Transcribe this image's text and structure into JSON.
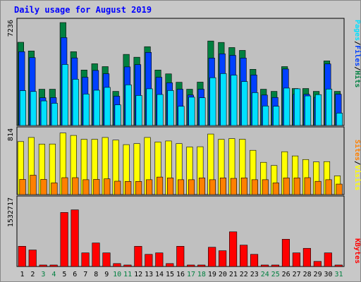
{
  "title": "Daily usage for August 2019",
  "colors": {
    "hits": "#008040",
    "files": "#0040ff",
    "pages": "#00e0ff",
    "visits": "#ffff00",
    "sites": "#ff8000",
    "kbytes": "#ff0000",
    "weekday_label": "#000000",
    "weekend_label": "#008040",
    "panel_bg": "#c0c0c0",
    "frame_bg": "#c8c8c8"
  },
  "legend": {
    "top": [
      {
        "text": "Pages",
        "color": "#00e0ff"
      },
      {
        "text": "/",
        "color": "#000000"
      },
      {
        "text": "Files",
        "color": "#0040ff"
      },
      {
        "text": "/",
        "color": "#000000"
      },
      {
        "text": "Hits",
        "color": "#008040"
      }
    ],
    "middle": [
      {
        "text": "Sites",
        "color": "#ff8000"
      },
      {
        "text": "/",
        "color": "#000000"
      },
      {
        "text": "Visits",
        "color": "#ffff00"
      }
    ],
    "bottom": [
      {
        "text": "KBytes",
        "color": "#ff0000"
      }
    ]
  },
  "chart_data": [
    {
      "type": "bar",
      "title": "Daily usage for August 2019",
      "ymax_label": "7236",
      "ylim": [
        0,
        7236
      ],
      "categories": [
        "1",
        "2",
        "3",
        "4",
        "5",
        "6",
        "7",
        "8",
        "9",
        "10",
        "11",
        "12",
        "13",
        "14",
        "15",
        "16",
        "17",
        "18",
        "19",
        "20",
        "21",
        "22",
        "23",
        "24",
        "25",
        "26",
        "27",
        "28",
        "29",
        "30",
        "31"
      ],
      "weekend_days": [
        "3",
        "4",
        "10",
        "11",
        "17",
        "18",
        "24",
        "25",
        "31"
      ],
      "series": [
        {
          "name": "Hits",
          "values": [
            5850,
            5240,
            2550,
            2550,
            7236,
            5190,
            3900,
            4340,
            4140,
            2400,
            5000,
            4800,
            5540,
            3900,
            3630,
            3040,
            2550,
            3050,
            5940,
            5840,
            5480,
            5280,
            3950,
            2550,
            2400,
            4140,
            2600,
            2600,
            2400,
            4540,
            2400
          ]
        },
        {
          "name": "Files",
          "values": [
            5190,
            4770,
            1950,
            1960,
            6180,
            4750,
            3390,
            3870,
            3640,
            2060,
            4120,
            4280,
            5140,
            3390,
            3000,
            2550,
            2140,
            2550,
            4740,
            5040,
            4930,
            4740,
            3550,
            2140,
            1970,
            3970,
            2190,
            2190,
            1980,
            4330,
            2200
          ]
        },
        {
          "name": "Pages",
          "values": [
            2450,
            2390,
            1730,
            1560,
            4290,
            3250,
            2210,
            2480,
            2680,
            1450,
            2860,
            2110,
            2580,
            2180,
            2460,
            1350,
            1990,
            1950,
            3360,
            3650,
            3540,
            3090,
            2310,
            1370,
            1350,
            2630,
            2580,
            2080,
            2170,
            2560,
            870
          ]
        }
      ]
    },
    {
      "type": "bar",
      "ymax_label": "814",
      "ylim": [
        0,
        814
      ],
      "series": [
        {
          "name": "Visits",
          "values": [
            680,
            733,
            647,
            649,
            790,
            759,
            709,
            709,
            733,
            699,
            641,
            654,
            733,
            675,
            688,
            654,
            611,
            614,
            777,
            709,
            718,
            710,
            568,
            414,
            373,
            550,
            496,
            450,
            419,
            423,
            240
          ]
        },
        {
          "name": "Sites",
          "values": [
            195,
            249,
            195,
            150,
            217,
            217,
            191,
            195,
            202,
            172,
            169,
            169,
            191,
            225,
            214,
            191,
            191,
            214,
            191,
            214,
            208,
            214,
            191,
            191,
            150,
            214,
            214,
            217,
            170,
            191,
            135
          ]
        }
      ]
    },
    {
      "type": "bar",
      "ymax_label": "1532717",
      "ylim": [
        0,
        1532717
      ],
      "series": [
        {
          "name": "KBytes",
          "values": [
            468000,
            382000,
            34000,
            34000,
            1250000,
            1310000,
            315000,
            544000,
            315000,
            68000,
            34000,
            467000,
            281000,
            315000,
            68000,
            468000,
            34000,
            34000,
            445000,
            365000,
            802000,
            494000,
            281000,
            34000,
            34000,
            630000,
            315000,
            420000,
            118000,
            315000,
            34000
          ]
        }
      ]
    }
  ]
}
